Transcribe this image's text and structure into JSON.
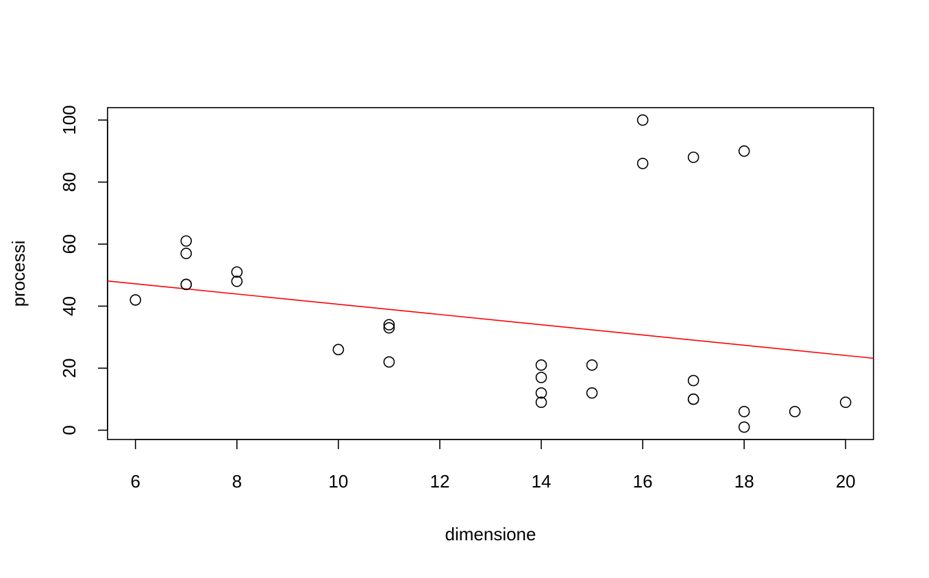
{
  "chart_data": {
    "type": "scatter",
    "title": "",
    "xlabel": "dimensione",
    "ylabel": "processi",
    "xlim": [
      5.45,
      20.55
    ],
    "ylim": [
      -3,
      104
    ],
    "x_ticks": [
      6,
      8,
      10,
      12,
      14,
      16,
      18,
      20
    ],
    "y_ticks": [
      0,
      20,
      40,
      60,
      80,
      100
    ],
    "grid": false,
    "legend": "none",
    "points": [
      {
        "x": 6,
        "y": 42
      },
      {
        "x": 7,
        "y": 61
      },
      {
        "x": 7,
        "y": 57
      },
      {
        "x": 7,
        "y": 47
      },
      {
        "x": 7,
        "y": 47
      },
      {
        "x": 8,
        "y": 51
      },
      {
        "x": 8,
        "y": 48
      },
      {
        "x": 10,
        "y": 26
      },
      {
        "x": 11,
        "y": 34
      },
      {
        "x": 11,
        "y": 33
      },
      {
        "x": 11,
        "y": 22
      },
      {
        "x": 14,
        "y": 21
      },
      {
        "x": 14,
        "y": 17
      },
      {
        "x": 14,
        "y": 12
      },
      {
        "x": 14,
        "y": 9
      },
      {
        "x": 15,
        "y": 21
      },
      {
        "x": 15,
        "y": 12
      },
      {
        "x": 16,
        "y": 100
      },
      {
        "x": 16,
        "y": 86
      },
      {
        "x": 17,
        "y": 88
      },
      {
        "x": 17,
        "y": 16
      },
      {
        "x": 17,
        "y": 10
      },
      {
        "x": 17,
        "y": 10
      },
      {
        "x": 18,
        "y": 90
      },
      {
        "x": 18,
        "y": 6
      },
      {
        "x": 18,
        "y": 1
      },
      {
        "x": 19,
        "y": 6
      },
      {
        "x": 20,
        "y": 9
      }
    ],
    "regression_line": {
      "intercept": 57.1,
      "slope": -1.65,
      "color": "#ff0000"
    },
    "point_color": "#000000"
  }
}
